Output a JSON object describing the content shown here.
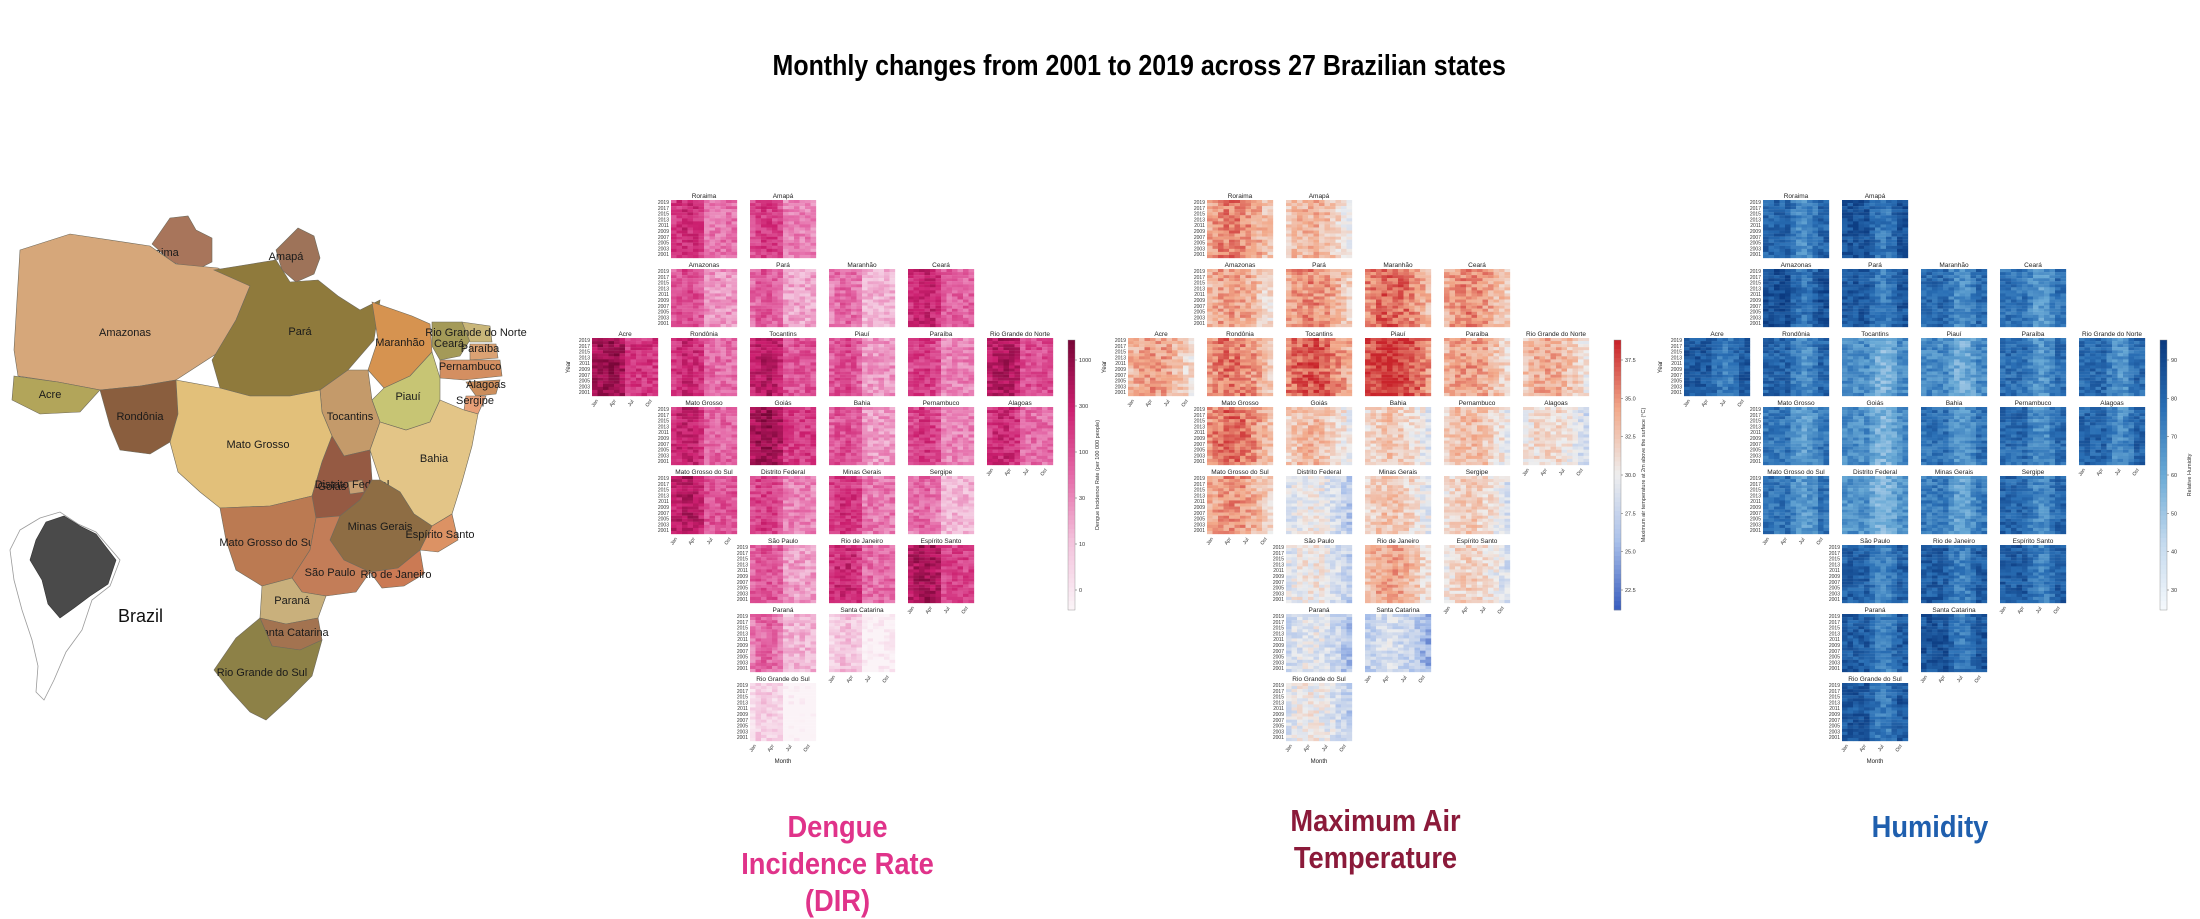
{
  "title": "Monthly changes from 2001 to 2019 across 27 Brazilian states",
  "map": {
    "inset_label": "Brazil",
    "states": [
      "Roraima",
      "Amapá",
      "Amazonas",
      "Pará",
      "Maranhão",
      "Ceará",
      "Rio Grande do Norte",
      "Paraíba",
      "Pernambuco",
      "Alagoas",
      "Sergipe",
      "Piauí",
      "Acre",
      "Rondônia",
      "Tocantins",
      "Bahia",
      "Mato Grosso",
      "Goiás",
      "Distrito Federal",
      "Minas Gerais",
      "Espírito Santo",
      "Mato Grosso do Sul",
      "São Paulo",
      "Rio de Janeiro",
      "Paraná",
      "Santa Catarina",
      "Rio Grande do Sul"
    ]
  },
  "chart_data": [
    {
      "type": "heatmap",
      "panel_caption": "Dengue Incidence Rate (DIR)",
      "caption_color": "#e0338a",
      "colormap": [
        "#fbf3f7",
        "#f3c2dc",
        "#e56aa8",
        "#cc1f6f",
        "#7a0638"
      ],
      "colorbar_label": "Dengue Incidence Rate (per 100 000 people)",
      "colorbar_ticks": [
        "1000",
        "300",
        "100",
        "30",
        "10",
        "0"
      ],
      "xlabel": "Month",
      "ylabel": "Year",
      "x_ticks": [
        "Jan",
        "Apr",
        "Jul",
        "Oct"
      ],
      "y_ticks": [
        "2019",
        "2017",
        "2015",
        "2013",
        "2011",
        "2009",
        "2007",
        "2005",
        "2003",
        "2001"
      ],
      "mean_intensity": {
        "Roraima": 0.6,
        "Amapá": 0.55,
        "Amazonas": 0.5,
        "Pará": 0.45,
        "Maranhão": 0.4,
        "Ceará": 0.65,
        "Acre": 0.8,
        "Rondônia": 0.62,
        "Tocantins": 0.7,
        "Piauí": 0.5,
        "Paraíba": 0.55,
        "Rio Grande do Norte": 0.72,
        "Mato Grosso": 0.65,
        "Goiás": 0.78,
        "Bahia": 0.48,
        "Pernambuco": 0.55,
        "Alagoas": 0.62,
        "Mato Grosso do Sul": 0.7,
        "Distrito Federal": 0.55,
        "Minas Gerais": 0.58,
        "Sergipe": 0.4,
        "São Paulo": 0.48,
        "Rio de Janeiro": 0.62,
        "Espírito Santo": 0.75,
        "Paraná": 0.4,
        "Santa Catarina": 0.12,
        "Rio Grande do Sul": 0.08
      }
    },
    {
      "type": "heatmap",
      "panel_caption": "Maximum Air Temperature",
      "caption_color": "#8b1a3a",
      "colormap": [
        "#3b5fc0",
        "#a9c0ea",
        "#eeeeee",
        "#f2a98a",
        "#c9242b"
      ],
      "colorbar_label": "Maximum air temperature at 2m above the surface (°C)",
      "colorbar_ticks": [
        "37.5",
        "35.0",
        "32.5",
        "30.0",
        "27.5",
        "25.0",
        "22.5"
      ],
      "xlabel": "Month",
      "ylabel": "Year",
      "x_ticks": [
        "Jan",
        "Apr",
        "Jul",
        "Oct"
      ],
      "y_ticks": [
        "2019",
        "2017",
        "2015",
        "2013",
        "2011",
        "2009",
        "2007",
        "2005",
        "2003",
        "2001"
      ],
      "mean_intensity": {
        "Roraima": 0.72,
        "Amapá": 0.6,
        "Amazonas": 0.66,
        "Pará": 0.7,
        "Maranhão": 0.78,
        "Ceará": 0.7,
        "Acre": 0.66,
        "Rondônia": 0.74,
        "Tocantins": 0.8,
        "Piauí": 0.88,
        "Paraíba": 0.66,
        "Rio Grande do Norte": 0.62,
        "Mato Grosso": 0.76,
        "Goiás": 0.58,
        "Bahia": 0.54,
        "Pernambuco": 0.58,
        "Alagoas": 0.48,
        "Mato Grosso do Sul": 0.68,
        "Distrito Federal": 0.4,
        "Minas Gerais": 0.55,
        "Sergipe": 0.52,
        "São Paulo": 0.42,
        "Rio de Janeiro": 0.64,
        "Espírito Santo": 0.5,
        "Paraná": 0.36,
        "Santa Catarina": 0.3,
        "Rio Grande do Sul": 0.4
      }
    },
    {
      "type": "heatmap",
      "panel_caption": "Humidity",
      "caption_color": "#1f5fae",
      "colormap": [
        "#f4f8fc",
        "#c3d9ee",
        "#6aaad6",
        "#2a6fb5",
        "#0b3a80"
      ],
      "colorbar_label": "Relative Humidity",
      "colorbar_ticks": [
        "90",
        "80",
        "70",
        "60",
        "50",
        "40",
        "30"
      ],
      "xlabel": "Month",
      "ylabel": "Year",
      "x_ticks": [
        "Jan",
        "Apr",
        "Jul",
        "Oct"
      ],
      "y_ticks": [
        "2019",
        "2017",
        "2015",
        "2013",
        "2011",
        "2009",
        "2007",
        "2005",
        "2003",
        "2001"
      ],
      "mean_intensity": {
        "Roraima": 0.8,
        "Amapá": 0.88,
        "Amazonas": 0.9,
        "Pará": 0.86,
        "Maranhão": 0.78,
        "Ceará": 0.74,
        "Acre": 0.86,
        "Rondônia": 0.8,
        "Tocantins": 0.62,
        "Piauí": 0.64,
        "Paraíba": 0.76,
        "Rio Grande do Norte": 0.78,
        "Mato Grosso": 0.72,
        "Goiás": 0.62,
        "Bahia": 0.74,
        "Pernambuco": 0.78,
        "Alagoas": 0.8,
        "Mato Grosso do Sul": 0.74,
        "Distrito Federal": 0.6,
        "Minas Gerais": 0.7,
        "Sergipe": 0.8,
        "São Paulo": 0.82,
        "Rio de Janeiro": 0.84,
        "Espírito Santo": 0.84,
        "Paraná": 0.84,
        "Santa Catarina": 0.88,
        "Rio Grande do Sul": 0.86
      }
    }
  ]
}
